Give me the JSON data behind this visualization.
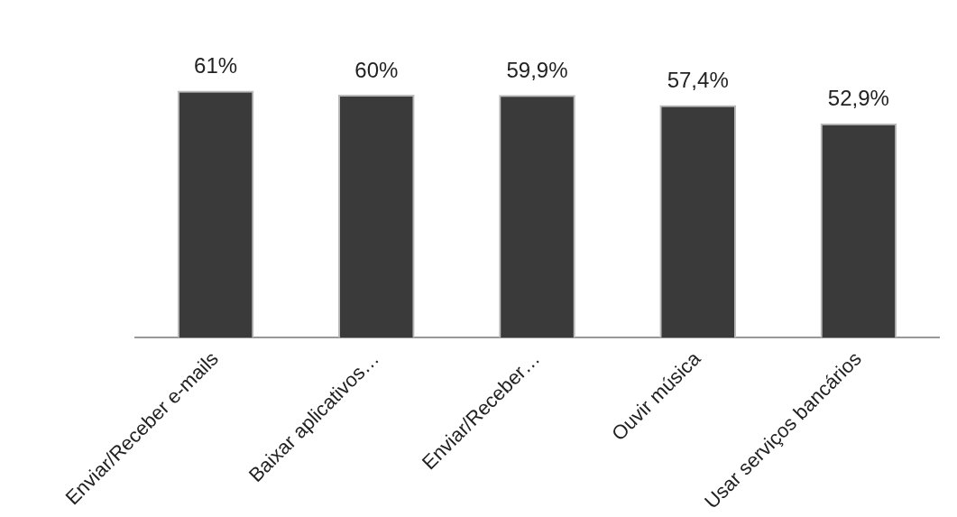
{
  "chart_data": {
    "type": "bar",
    "categories": [
      "Enviar/Receber e-mails",
      "Baixar aplicativos…",
      "Enviar/Receber…",
      "Ouvir música",
      "Usar serviços bancários"
    ],
    "values": [
      61,
      60,
      59.9,
      57.4,
      52.9
    ],
    "value_labels": [
      "61%",
      "60%",
      "59,9%",
      "57,4%",
      "52,9%"
    ],
    "color": "#3a3a3a",
    "tick_labels": "x",
    "grid": false,
    "legend": false
  }
}
